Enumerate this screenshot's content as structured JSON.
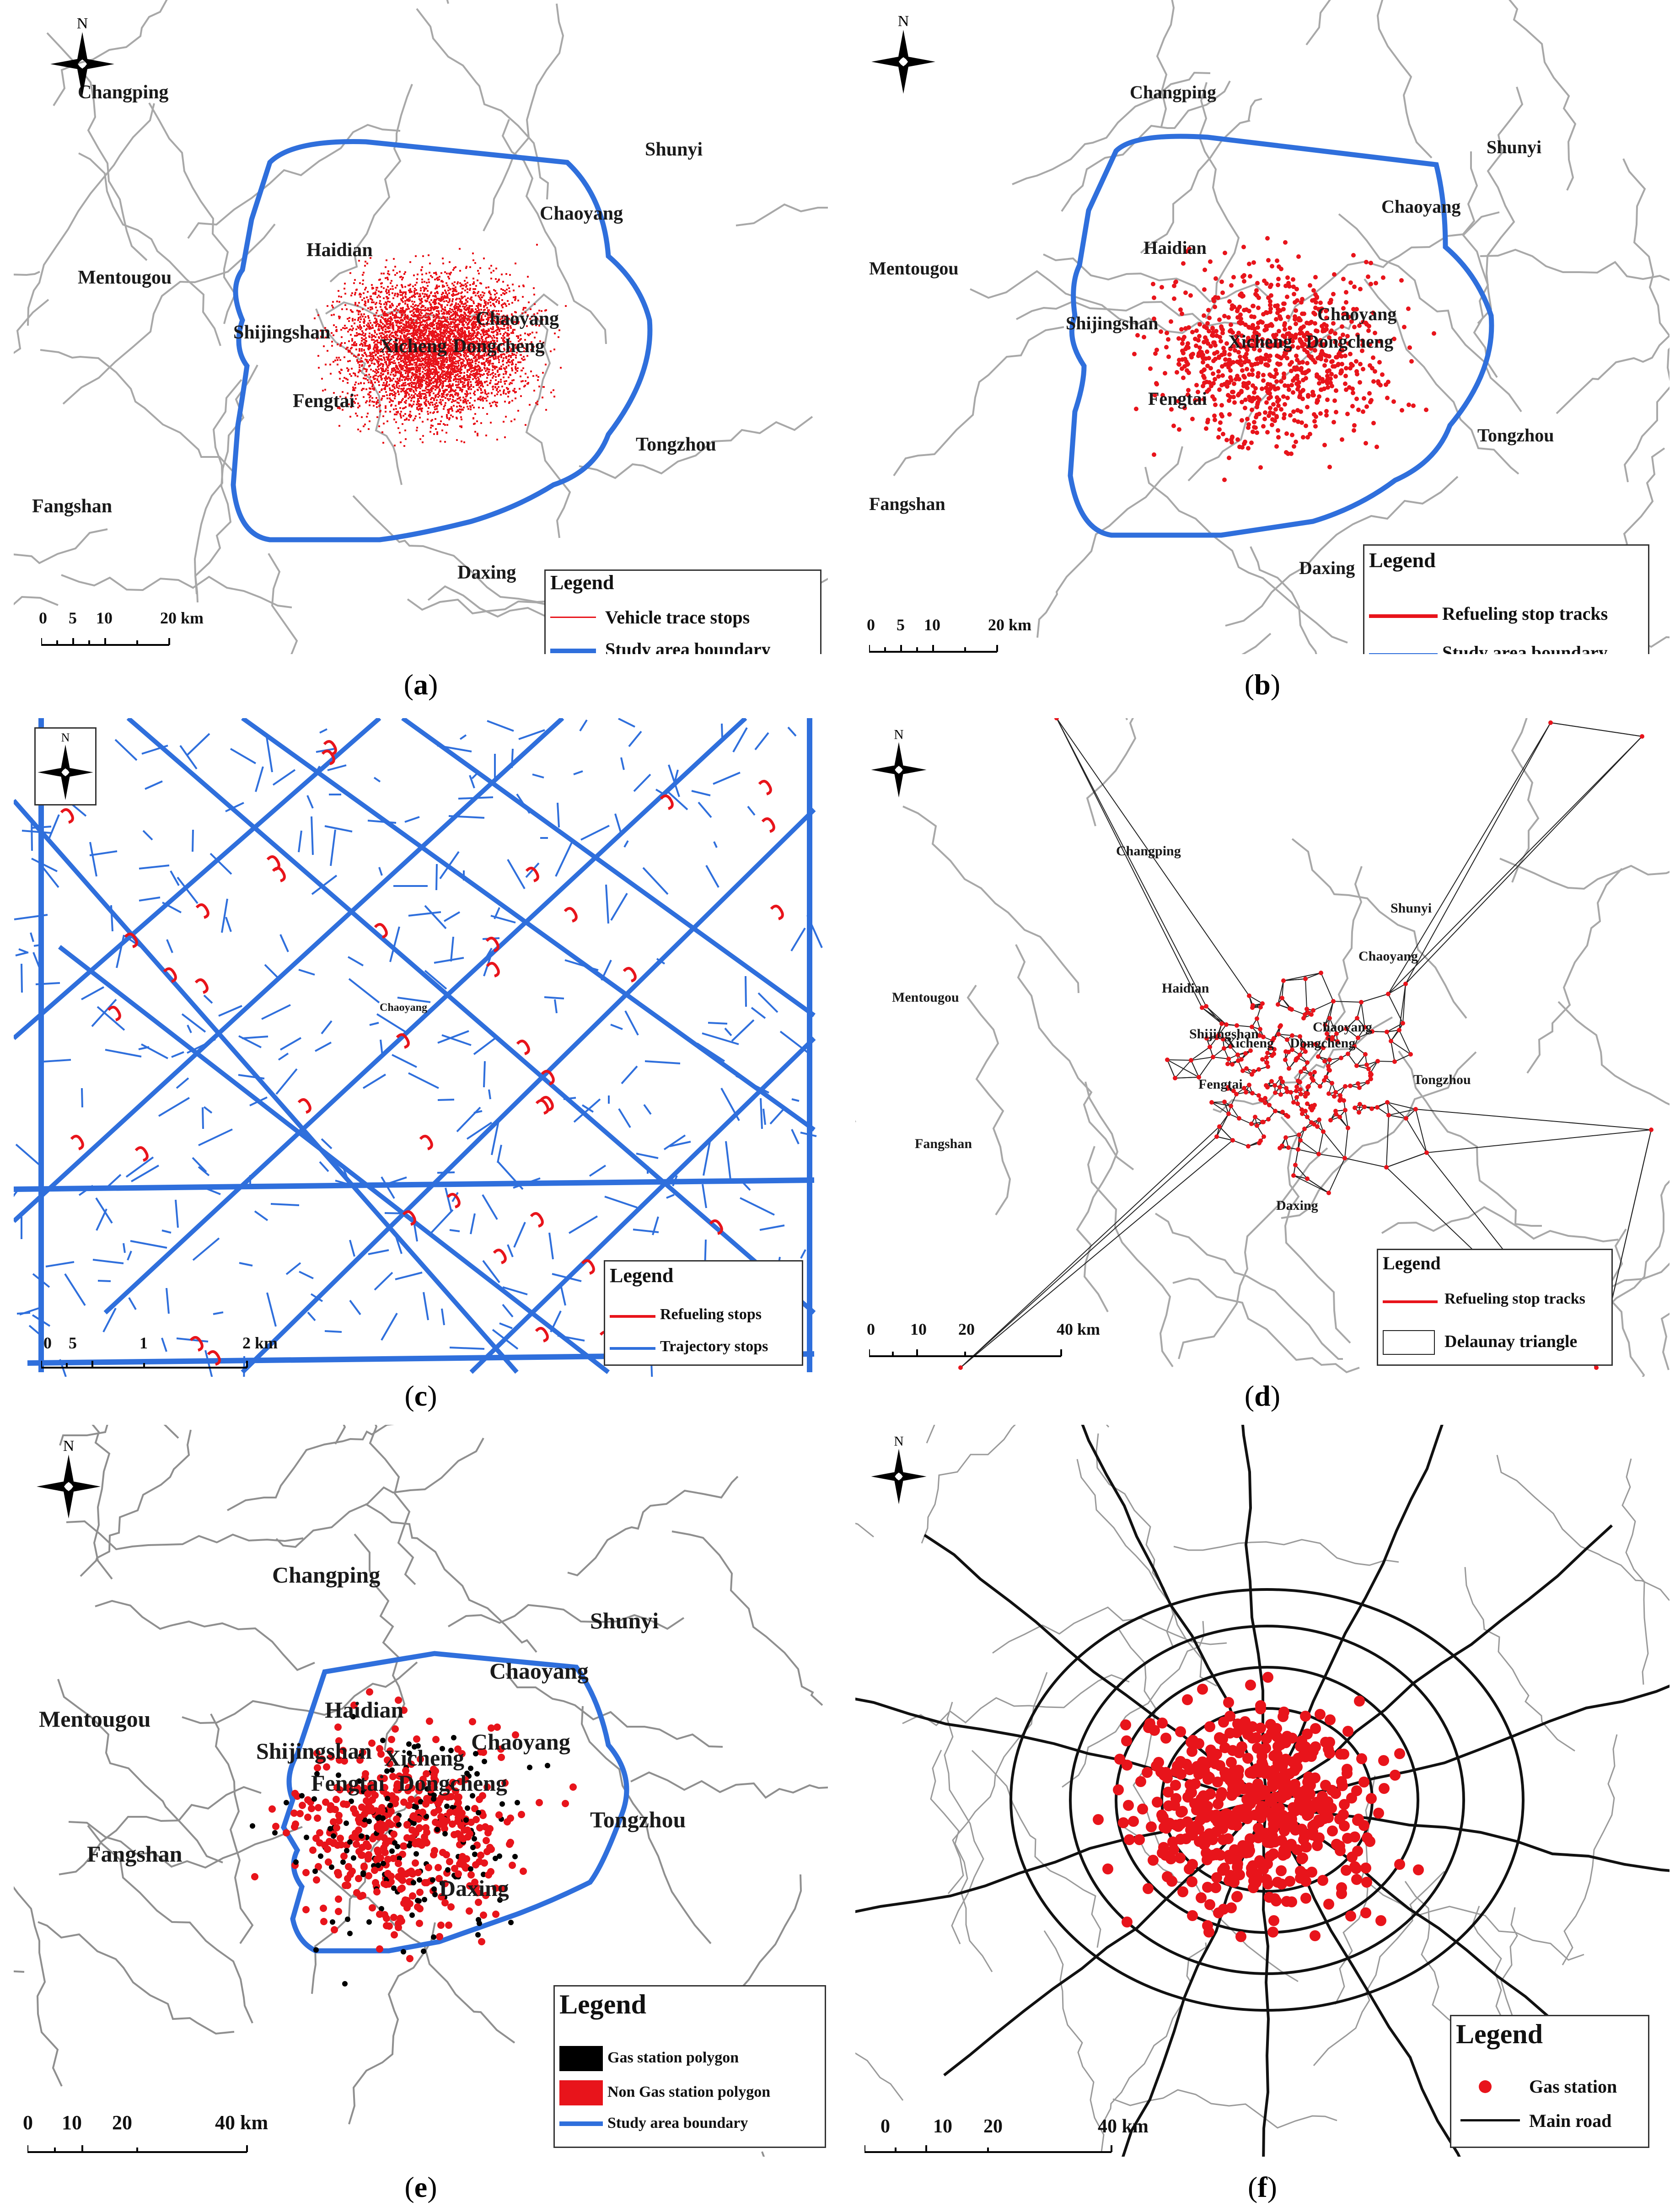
{
  "panels": [
    {
      "id": "a",
      "caption": "a",
      "places": [
        "Changping",
        "Shunyi",
        "Chaoyang",
        "Haidian",
        "Mentougou",
        "Shijingshan",
        "Chaoyang",
        "Xicheng",
        "Dongcheng",
        "Fengtai",
        "Tongzhou",
        "Fangshan",
        "Daxing"
      ],
      "legend": {
        "title": "Legend",
        "items": [
          "Vehicle trace stops",
          "Study area boundary"
        ]
      },
      "scale": [
        "0",
        "5",
        "10",
        "20 km"
      ]
    },
    {
      "id": "b",
      "caption": "b",
      "places": [
        "Changping",
        "Shunyi",
        "Chaoyang",
        "Haidian",
        "Mentougou",
        "Shijingshan",
        "Chaoyang",
        "Xicheng",
        "Dongcheng",
        "Fengtai",
        "Tongzhou",
        "Fangshan",
        "Daxing"
      ],
      "legend": {
        "title": "Legend",
        "items": [
          "Refueling stop tracks",
          "Study area boundary"
        ]
      },
      "scale": [
        "0",
        "5",
        "10",
        "20 km"
      ]
    },
    {
      "id": "c",
      "caption": "c",
      "places": [
        "Chaoyang"
      ],
      "legend": {
        "title": "Legend",
        "items": [
          "Refueling stops",
          "Trajectory stops"
        ]
      },
      "scale": [
        "0",
        "5",
        "1",
        "2 km"
      ]
    },
    {
      "id": "d",
      "caption": "d",
      "places": [
        "Changping",
        "Shunyi",
        "Chaoyang",
        "Haidian",
        "Mentougou",
        "Shijingshan",
        "Chaoyang",
        "Xicheng",
        "Dongcheng",
        "Fengtai",
        "Tongzhou",
        "Fangshan",
        "Daxing"
      ],
      "legend": {
        "title": "Legend",
        "items": [
          "Refueling stop tracks",
          "Delaunay triangle"
        ]
      },
      "scale": [
        "0",
        "10",
        "20",
        "40 km"
      ]
    },
    {
      "id": "e",
      "caption": "e",
      "places": [
        "Changping",
        "Shunyi",
        "Chaoyang",
        "Haidian",
        "Mentougou",
        "Shijingshan",
        "Chaoyang",
        "Xicheng",
        "Dongcheng",
        "Fengtai",
        "Tongzhou",
        "Fangshan",
        "Daxing"
      ],
      "legend": {
        "title": "Legend",
        "items": [
          "Gas station polygon",
          "Non Gas station polygon",
          "Study area boundary"
        ]
      },
      "scale": [
        "0",
        "10",
        "20",
        "40 km"
      ]
    },
    {
      "id": "f",
      "caption": "f",
      "places": [],
      "legend": {
        "title": "Legend",
        "items": [
          "Gas station",
          "Main road"
        ]
      },
      "scale": [
        "0",
        "10",
        "20",
        "40 km"
      ]
    }
  ],
  "north_label": "N",
  "colors": {
    "boundary": "#2f6fdc",
    "points": "#e8141b",
    "gas_polygon": "#000000",
    "trajectory": "#2f6fdc",
    "district": "#9a9a9a",
    "road": "#111111"
  }
}
